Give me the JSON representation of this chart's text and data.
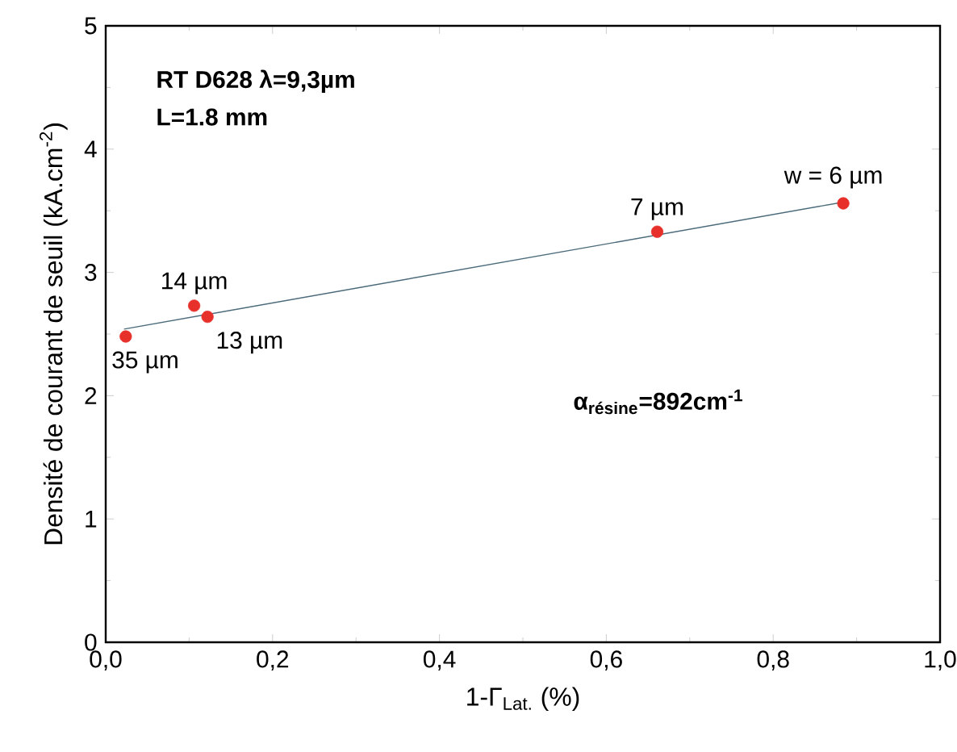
{
  "chart_data": {
    "type": "scatter",
    "xlabel": "1-Γ$_{Lat.}$ (%)",
    "ylabel": "Densité de courant de seuil (kA.cm$^{-2}$)",
    "xlim": [
      0,
      1.0
    ],
    "ylim": [
      0,
      5
    ],
    "xticks": [
      {
        "value": 0,
        "label": "0,0"
      },
      {
        "value": 0.2,
        "label": "0,2"
      },
      {
        "value": 0.4,
        "label": "0,4"
      },
      {
        "value": 0.6,
        "label": "0,6"
      },
      {
        "value": 0.8,
        "label": "0,8"
      },
      {
        "value": 1.0,
        "label": "1,0"
      }
    ],
    "yticks": [
      0,
      1,
      2,
      3,
      4,
      5
    ],
    "marker": "circle",
    "series": [
      {
        "color": "#e8302a",
        "x": [
          0.024,
          0.106,
          0.122,
          0.661,
          0.884
        ],
        "values": [
          2.48,
          2.73,
          2.64,
          3.33,
          3.56
        ]
      },
      {
        "type": "line",
        "color": "#4a6a7a",
        "marker": "none",
        "x": [
          0.022,
          0.884
        ],
        "values": [
          2.54,
          3.57
        ]
      }
    ],
    "annotations": [
      "RT  D628 λ=9,3µm",
      "L=1.8 mm",
      "α$_{résine}$=892cm$^{-1}$",
      {
        "text": "35 µm",
        "x": 0.024,
        "y": 2.48
      },
      {
        "text": "14 µm",
        "x": 0.106,
        "y": 2.73
      },
      {
        "text": "13 µm",
        "x": 0.122,
        "y": 2.64
      },
      {
        "text": "7 µm",
        "x": 0.661,
        "y": 3.33
      },
      {
        "text": "w = 6 µm",
        "x": 0.884,
        "y": 3.56
      }
    ]
  }
}
